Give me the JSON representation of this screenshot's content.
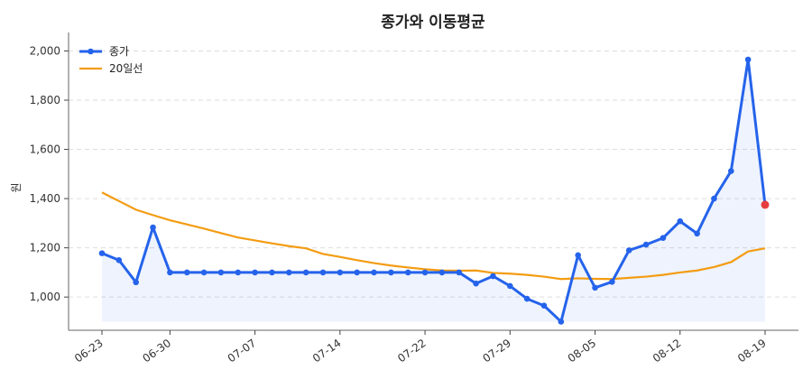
{
  "chart_data": {
    "type": "line",
    "title": "종가와 이동평균",
    "xlabel": "",
    "ylabel": "원",
    "ylim": [
      865,
      2075
    ],
    "y_ticks": [
      1000,
      1200,
      1400,
      1600,
      1800,
      2000
    ],
    "y_tick_labels": [
      "1,000",
      "1,200",
      "1,400",
      "1,600",
      "1,800",
      "2,000"
    ],
    "x_tick_labels": [
      "06-23",
      "06-30",
      "07-07",
      "07-14",
      "07-22",
      "07-29",
      "08-05",
      "08-12",
      "08-19"
    ],
    "x_tick_index": [
      0,
      4,
      9,
      14,
      19,
      24,
      29,
      34,
      39
    ],
    "grid": true,
    "legend_position": "top-left",
    "series": [
      {
        "name": "종가",
        "color": "#2563eb",
        "marker": "circle",
        "values": [
          1178,
          1150,
          1060,
          1283,
          1100,
          1100,
          1100,
          1100,
          1100,
          1100,
          1100,
          1100,
          1100,
          1100,
          1100,
          1100,
          1100,
          1100,
          1100,
          1100,
          1100,
          1100,
          1055,
          1085,
          1045,
          993,
          965,
          900,
          1170,
          1038,
          1062,
          1190,
          1213,
          1240,
          1308,
          1258,
          1400,
          1512,
          1965,
          1375
        ],
        "last_point_color": "#e53e3e"
      },
      {
        "name": "20일선",
        "color": "#f39c12",
        "values": [
          1425,
          1390,
          1355,
          1333,
          1312,
          1295,
          1278,
          1260,
          1242,
          1230,
          1218,
          1207,
          1198,
          1175,
          1163,
          1150,
          1138,
          1128,
          1120,
          1113,
          1108,
          1107,
          1108,
          1098,
          1095,
          1090,
          1083,
          1073,
          1076,
          1074,
          1073,
          1078,
          1083,
          1090,
          1100,
          1108,
          1122,
          1142,
          1185,
          1198
        ]
      }
    ]
  }
}
